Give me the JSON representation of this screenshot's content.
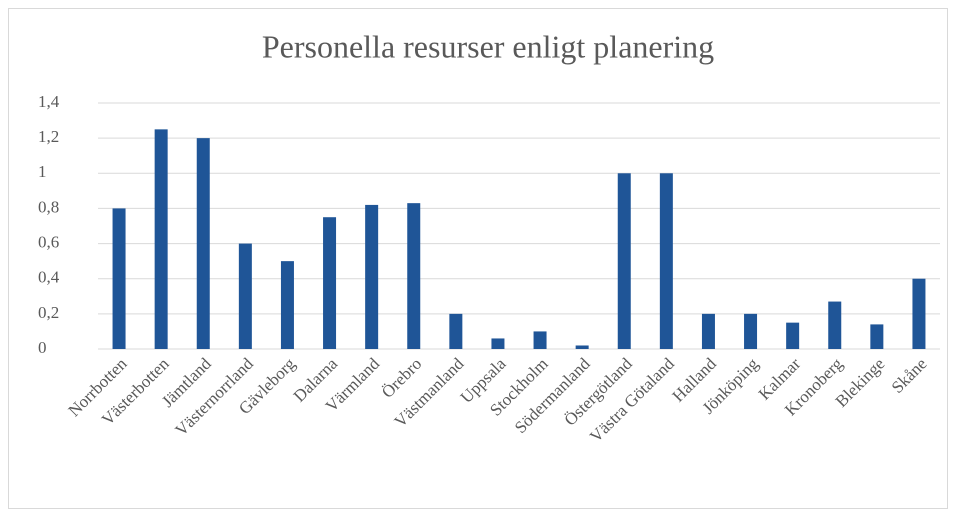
{
  "chart_data": {
    "type": "bar",
    "title": "Personella resurser enligt planering",
    "categories": [
      "Norrbotten",
      "Västerbotten",
      "Jämtland",
      "Västernorrland",
      "Gävleborg",
      "Dalarna",
      "Värmland",
      "Örebro",
      "Västmanland",
      "Uppsala",
      "Stockholm",
      "Södermanland",
      "Östergötland",
      "Västra Götaland",
      "Halland",
      "Jönköping",
      "Kalmar",
      "Kronoberg",
      "Blekinge",
      "Skåne"
    ],
    "values": [
      0.8,
      1.25,
      1.2,
      0.6,
      0.5,
      0.75,
      0.82,
      0.83,
      0.2,
      0.06,
      0.1,
      0.02,
      1.0,
      1.0,
      0.2,
      0.2,
      0.15,
      0.27,
      0.14,
      0.4
    ],
    "color": "#1f5597",
    "ylim": [
      0,
      1.4
    ],
    "yticks": [
      0,
      {
        "value": 0.2,
        "label": "0,2"
      },
      {
        "value": 0.4,
        "label": "0,4"
      },
      {
        "value": 0.6,
        "label": "0,6"
      },
      {
        "value": 0.8,
        "label": "0,8"
      },
      1,
      {
        "value": 1.2,
        "label": "1,2"
      },
      {
        "value": 1.4,
        "label": "1,4"
      }
    ],
    "grid": true
  }
}
